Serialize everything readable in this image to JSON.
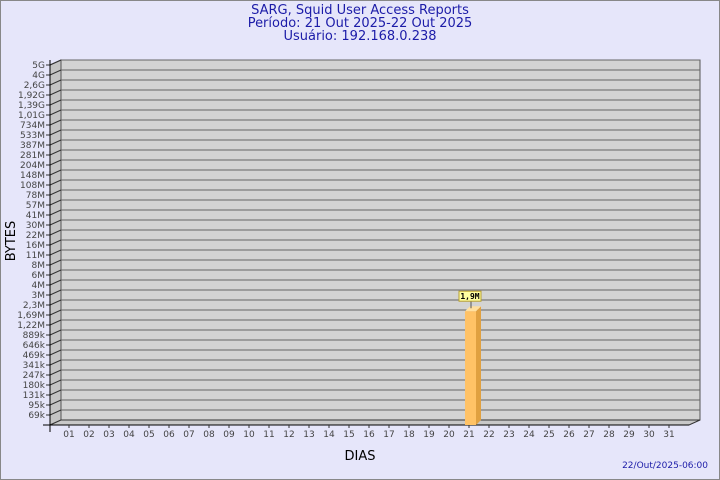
{
  "header": {
    "line1": "SARG, Squid User Access Reports",
    "line2": "Período: 21 Out 2025-22 Out 2025",
    "line3": "Usuário: 192.168.0.238"
  },
  "footer": {
    "timestamp": "22/Out/2025-06:00"
  },
  "chart_data": {
    "type": "bar",
    "title": "SARG, Squid User Access Reports",
    "xlabel": "DIAS",
    "ylabel": "BYTES",
    "yscale": "log",
    "ytick_labels": [
      "5G",
      "4G",
      "2,6G",
      "1,92G",
      "1,39G",
      "1,01G",
      "734M",
      "533M",
      "387M",
      "281M",
      "204M",
      "148M",
      "108M",
      "78M",
      "57M",
      "41M",
      "30M",
      "22M",
      "16M",
      "11M",
      "8M",
      "6M",
      "4M",
      "3M",
      "2,3M",
      "1,69M",
      "1,22M",
      "889k",
      "646k",
      "469k",
      "341k",
      "247k",
      "180k",
      "131k",
      "95k",
      "69k"
    ],
    "categories": [
      "01",
      "02",
      "03",
      "04",
      "05",
      "06",
      "07",
      "08",
      "09",
      "10",
      "11",
      "12",
      "13",
      "14",
      "15",
      "16",
      "17",
      "18",
      "19",
      "20",
      "21",
      "22",
      "23",
      "24",
      "25",
      "26",
      "27",
      "28",
      "29",
      "30",
      "31"
    ],
    "values": [
      0,
      0,
      0,
      0,
      0,
      0,
      0,
      0,
      0,
      0,
      0,
      0,
      0,
      0,
      0,
      0,
      0,
      0,
      0,
      0,
      1900000,
      0,
      0,
      0,
      0,
      0,
      0,
      0,
      0,
      0,
      0
    ],
    "data_labels": {
      "21": "1,9M"
    },
    "grid": true,
    "colors": {
      "bar": "#ffc266",
      "bar_side": "#e0a040",
      "bar_top": "#ffe0a0",
      "plot": "#d3d3d3",
      "text": "#1c1ca8"
    }
  }
}
